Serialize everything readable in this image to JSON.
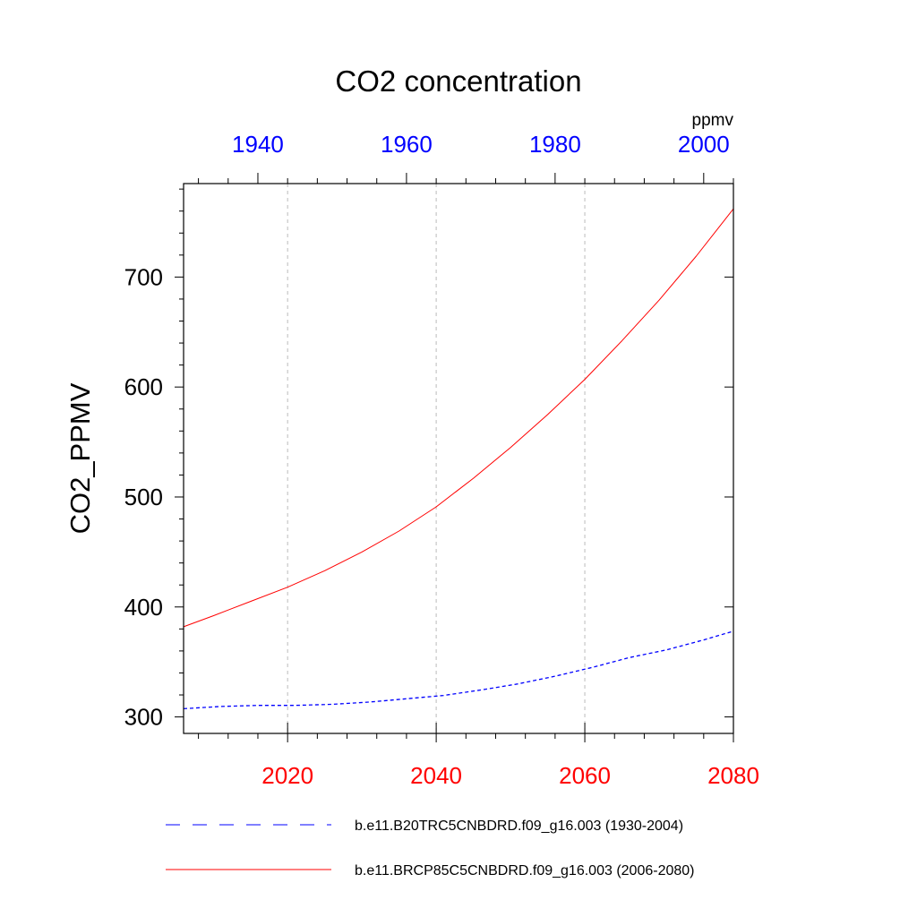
{
  "chart_data": {
    "type": "line",
    "title": "CO2 concentration",
    "ylabel": "CO2_PPMV",
    "units_label": "ppmv",
    "ylim": [
      285,
      785
    ],
    "y_ticks": [
      300,
      400,
      500,
      600,
      700
    ],
    "y_minor_step": 20,
    "grid": "vertical dashed at bottom-axis major ticks",
    "bottom_axis": {
      "color": "#ff0000",
      "range": [
        2006,
        2080
      ],
      "ticks": [
        2020,
        2040,
        2060,
        2080
      ],
      "minor_step": 4
    },
    "top_axis": {
      "color": "#0000ff",
      "range": [
        1930,
        2004
      ],
      "ticks": [
        1940,
        1960,
        1980,
        2000
      ],
      "minor_step": 4
    },
    "series": [
      {
        "name": "b.e11.B20TRC5CNBDRD.f09_g16.003 (1930-2004)",
        "color": "#0000ff",
        "dash": "dashed",
        "axis": "top",
        "x": [
          1930,
          1935,
          1940,
          1945,
          1950,
          1955,
          1960,
          1965,
          1970,
          1975,
          1980,
          1985,
          1990,
          1995,
          2000,
          2004
        ],
        "values": [
          307.5,
          309.5,
          310.5,
          310.5,
          311.5,
          313.5,
          316.5,
          319.5,
          324.5,
          330,
          337,
          345,
          354,
          361,
          370,
          378
        ]
      },
      {
        "name": "b.e11.BRCP85C5CNBDRD.f09_g16.003 (2006-2080)",
        "color": "#ff0000",
        "dash": "solid",
        "axis": "bottom",
        "x": [
          2006,
          2010,
          2015,
          2020,
          2025,
          2030,
          2035,
          2040,
          2045,
          2050,
          2055,
          2060,
          2065,
          2070,
          2075,
          2080
        ],
        "values": [
          382,
          392,
          405,
          418,
          433,
          450,
          469,
          491,
          517,
          545,
          575,
          607,
          642,
          679,
          719,
          762
        ]
      }
    ],
    "legend_position": "bottom"
  }
}
